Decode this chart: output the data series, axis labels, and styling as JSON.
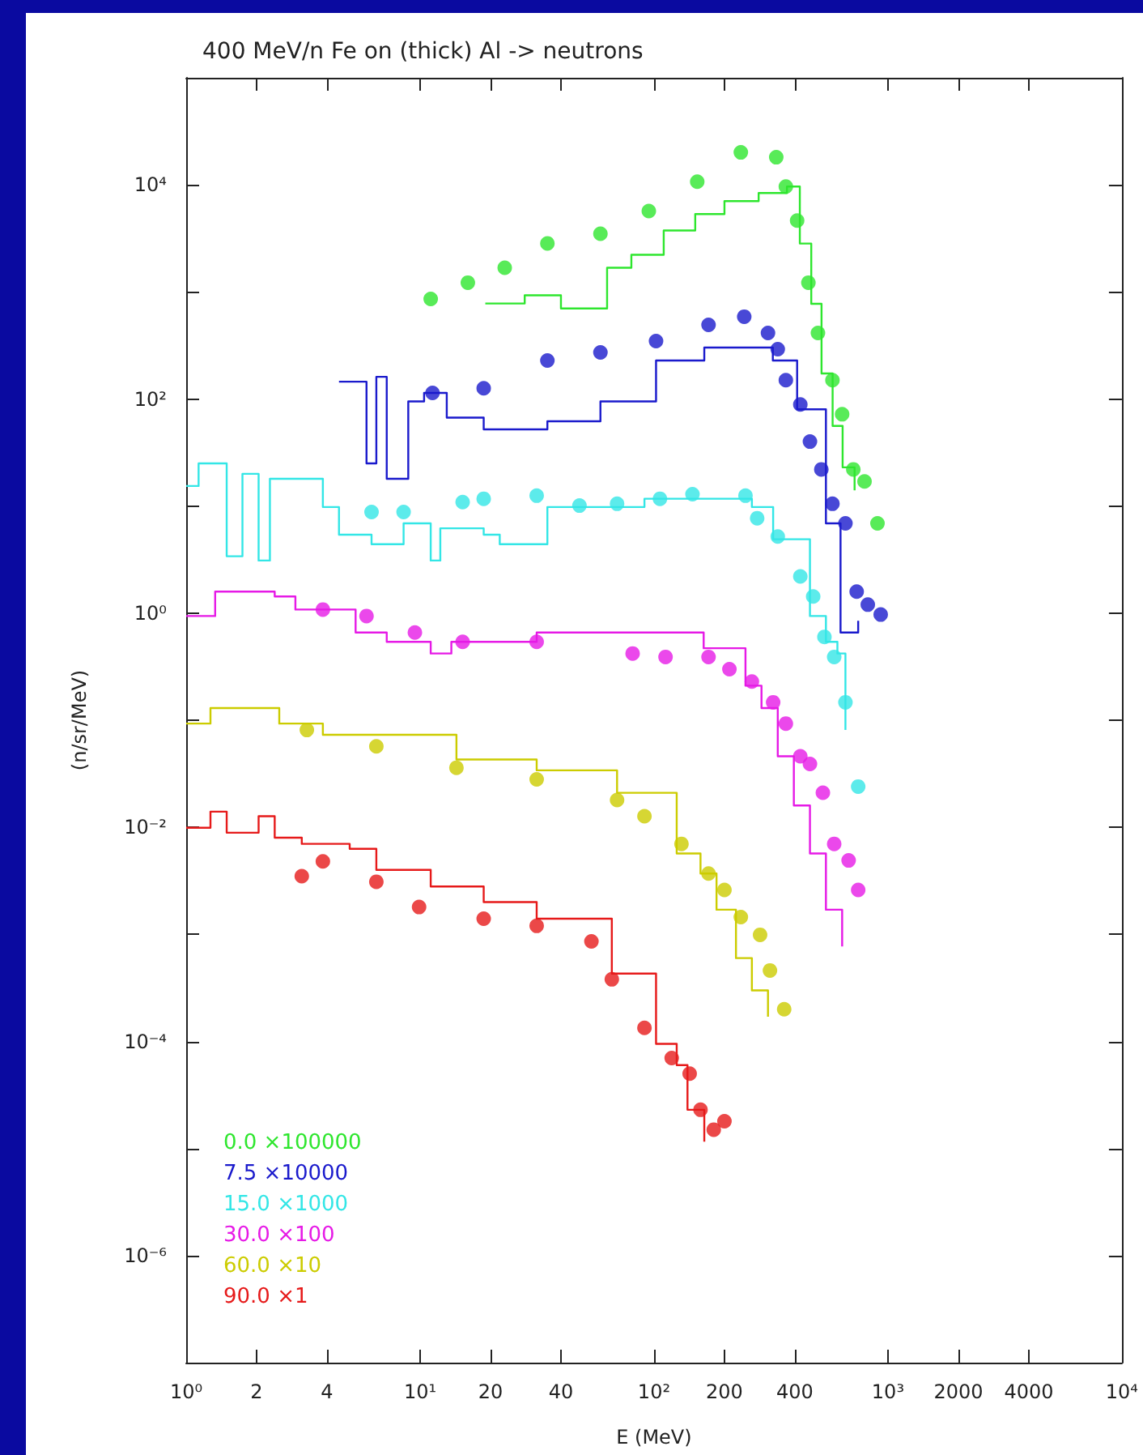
{
  "chart_data": {
    "type": "scatter",
    "title": "400 MeV/n Fe on (thick) Al -> neutrons",
    "xlabel": "E (MeV)",
    "ylabel": "(n/sr/MeV)",
    "log": "xy",
    "xlim": [
      1,
      10000
    ],
    "ylim": [
      1e-07,
      100000
    ],
    "xticks": [
      {
        "value": 1,
        "label": "10⁰"
      },
      2,
      4,
      {
        "value": 10,
        "label": "10¹"
      },
      20,
      40,
      {
        "value": 100,
        "label": "10²"
      },
      200,
      400,
      {
        "value": 1000,
        "label": "10³"
      },
      2000,
      4000,
      {
        "value": 10000,
        "label": "10⁴"
      }
    ],
    "yticks": [
      {
        "value": 1e-07,
        "label": null
      },
      {
        "value": 1e-06,
        "label": "10⁻⁶"
      },
      {
        "value": 1e-05,
        "label": null
      },
      {
        "value": 0.0001,
        "label": "10⁻⁴"
      },
      {
        "value": 0.001,
        "label": null
      },
      {
        "value": 0.01,
        "label": "10⁻²"
      },
      {
        "value": 0.1,
        "label": null
      },
      {
        "value": 1,
        "label": "10⁰"
      },
      {
        "value": 10,
        "label": null
      },
      {
        "value": 100,
        "label": "10²"
      },
      {
        "value": 1000,
        "label": null
      },
      {
        "value": 10000,
        "label": "10⁴"
      },
      {
        "value": 100000,
        "label": null
      }
    ],
    "grid": false,
    "legend": "bottom left",
    "marker": "circle",
    "line_style": "solid",
    "series": [
      {
        "name": "0.0 ×100000",
        "type": "scatter",
        "color": "#2ee62e",
        "x": [
          11.1,
          16,
          23,
          35,
          59,
          95,
          153,
          235,
          333,
          366,
          409,
          457,
          502,
          579,
          637,
          711,
          794,
          902
        ],
        "values": [
          860,
          1220,
          1680,
          2840,
          3500,
          5700,
          10700,
          20100,
          18100,
          9650,
          4640,
          1220,
          414,
          150,
          72,
          22,
          17,
          6.9
        ]
      },
      {
        "type": "step",
        "marker": "none",
        "color": "#2ee62e",
        "x": [
          19,
          28,
          40,
          63,
          80,
          110,
          150,
          200,
          280,
          370,
          420,
          470,
          520,
          580,
          640,
          720
        ],
        "values": [
          780,
          930,
          700,
          1680,
          2220,
          3750,
          5330,
          7050,
          8390,
          9650,
          2830,
          775,
          173,
          56,
          23,
          14
        ]
      },
      {
        "name": "7.5 ×10000",
        "type": "scatter",
        "color": "#1a1acc",
        "x": [
          11.3,
          18.7,
          35,
          59,
          102,
          171,
          243,
          307,
          338,
          366,
          422,
          464,
          519,
          579,
          658,
          735,
          820,
          931
        ],
        "values": [
          114,
          126,
          229,
          272,
          348,
          493,
          587,
          414,
          292,
          150,
          89,
          40,
          22,
          10.5,
          6.9,
          1.59,
          1.2,
          0.97
        ]
      },
      {
        "type": "step",
        "marker": "none",
        "color": "#1a1acc",
        "x": [
          4.5,
          5.9,
          6.5,
          7.2,
          8.9,
          10.4,
          13,
          18.7,
          35,
          59,
          102,
          164,
          322,
          409,
          543,
          627,
          746
        ],
        "values": [
          145,
          25,
          161,
          18,
          95,
          114,
          67,
          52,
          62,
          95,
          229,
          302,
          229,
          80,
          6.9,
          0.66,
          0.85
        ]
      },
      {
        "name": "15.0 ×1000",
        "type": "scatter",
        "color": "#33e6e6",
        "x": [
          6.2,
          8.5,
          15.2,
          18.7,
          31.5,
          48,
          69.5,
          106,
          146,
          246,
          276,
          338,
          422,
          479,
          535,
          589,
          658,
          746
        ],
        "values": [
          8.8,
          8.8,
          10.9,
          11.7,
          12.5,
          10.1,
          10.5,
          11.7,
          12.9,
          12.5,
          7.7,
          5.2,
          2.2,
          1.43,
          0.6,
          0.39,
          0.147,
          0.024
        ]
      },
      {
        "type": "step",
        "marker": "none",
        "color": "#33e6e6",
        "x": [
          1,
          1.13,
          1.49,
          1.74,
          2.04,
          2.28,
          3.84,
          4.5,
          6.2,
          8.5,
          11.1,
          12.2,
          18.7,
          21.9,
          35,
          91,
          262,
          323,
          464,
          543,
          608,
          658
        ],
        "values": [
          15.4,
          25,
          3.4,
          20,
          3.1,
          18,
          9.8,
          5.4,
          4.4,
          6.9,
          3.1,
          6.2,
          5.4,
          4.4,
          9.8,
          11.7,
          9.8,
          4.9,
          0.94,
          0.54,
          0.42,
          0.081
        ]
      },
      {
        "name": "30.0 ×100",
        "type": "scatter",
        "color": "#e61ae6",
        "x": [
          3.84,
          5.9,
          9.5,
          15.2,
          31.5,
          81,
          112,
          171,
          210,
          262,
          323,
          366,
          422,
          464,
          527,
          589,
          679,
          746
        ],
        "values": [
          1.08,
          0.94,
          0.66,
          0.54,
          0.54,
          0.42,
          0.39,
          0.39,
          0.3,
          0.23,
          0.147,
          0.093,
          0.046,
          0.039,
          0.021,
          0.007,
          0.0049,
          0.0026
        ]
      },
      {
        "type": "step",
        "marker": "none",
        "color": "#e61ae6",
        "x": [
          1,
          1.33,
          2.39,
          2.93,
          5.3,
          7.2,
          11.1,
          13.6,
          31.5,
          91,
          163,
          246,
          288,
          338,
          396,
          464,
          543,
          637
        ],
        "values": [
          0.94,
          1.59,
          1.43,
          1.08,
          0.66,
          0.54,
          0.42,
          0.54,
          0.66,
          0.66,
          0.47,
          0.21,
          0.13,
          0.046,
          0.016,
          0.0057,
          0.0017,
          0.00077
        ]
      },
      {
        "name": "60.0 ×10",
        "type": "scatter",
        "color": "#cccc00",
        "x": [
          3.28,
          6.5,
          14.3,
          31.5,
          69.5,
          91,
          131,
          171,
          200,
          235,
          284,
          313,
          360
        ],
        "values": [
          0.081,
          0.057,
          0.036,
          0.028,
          0.018,
          0.0127,
          0.007,
          0.0037,
          0.0026,
          0.00145,
          0.00099,
          0.00046,
          0.0002
        ]
      },
      {
        "type": "step",
        "marker": "none",
        "color": "#cccc00",
        "x": [
          1,
          1.27,
          1.82,
          2.5,
          3.84,
          14.3,
          31.5,
          69.5,
          125,
          158,
          185,
          224,
          262,
          307
        ],
        "values": [
          0.093,
          0.13,
          0.13,
          0.093,
          0.073,
          0.043,
          0.034,
          0.021,
          0.0057,
          0.0037,
          0.0017,
          0.0006,
          0.0003,
          0.00017
        ]
      },
      {
        "name": "90.0 ×1",
        "type": "scatter",
        "color": "#e61a1a",
        "x": [
          3.12,
          3.84,
          6.5,
          9.9,
          18.7,
          31.5,
          54,
          66,
          91,
          119,
          142,
          158,
          180,
          200
        ],
        "values": [
          0.0035,
          0.0048,
          0.0031,
          0.0018,
          0.0014,
          0.0012,
          0.00086,
          0.00038,
          0.000134,
          7e-05,
          5e-05,
          2.3e-05,
          1.5e-05,
          1.8e-05
        ]
      },
      {
        "type": "step",
        "marker": "none",
        "color": "#e61a1a",
        "x": [
          1,
          1.27,
          1.49,
          2.04,
          2.39,
          3.12,
          5,
          6.5,
          11.1,
          18.7,
          31.5,
          66,
          102,
          125,
          139,
          164
        ],
        "values": [
          0.0099,
          0.014,
          0.0089,
          0.0127,
          0.008,
          0.007,
          0.0063,
          0.004,
          0.0028,
          0.002,
          0.0014,
          0.00043,
          9.5e-05,
          6e-05,
          2.3e-05,
          1.16e-05
        ]
      }
    ]
  }
}
